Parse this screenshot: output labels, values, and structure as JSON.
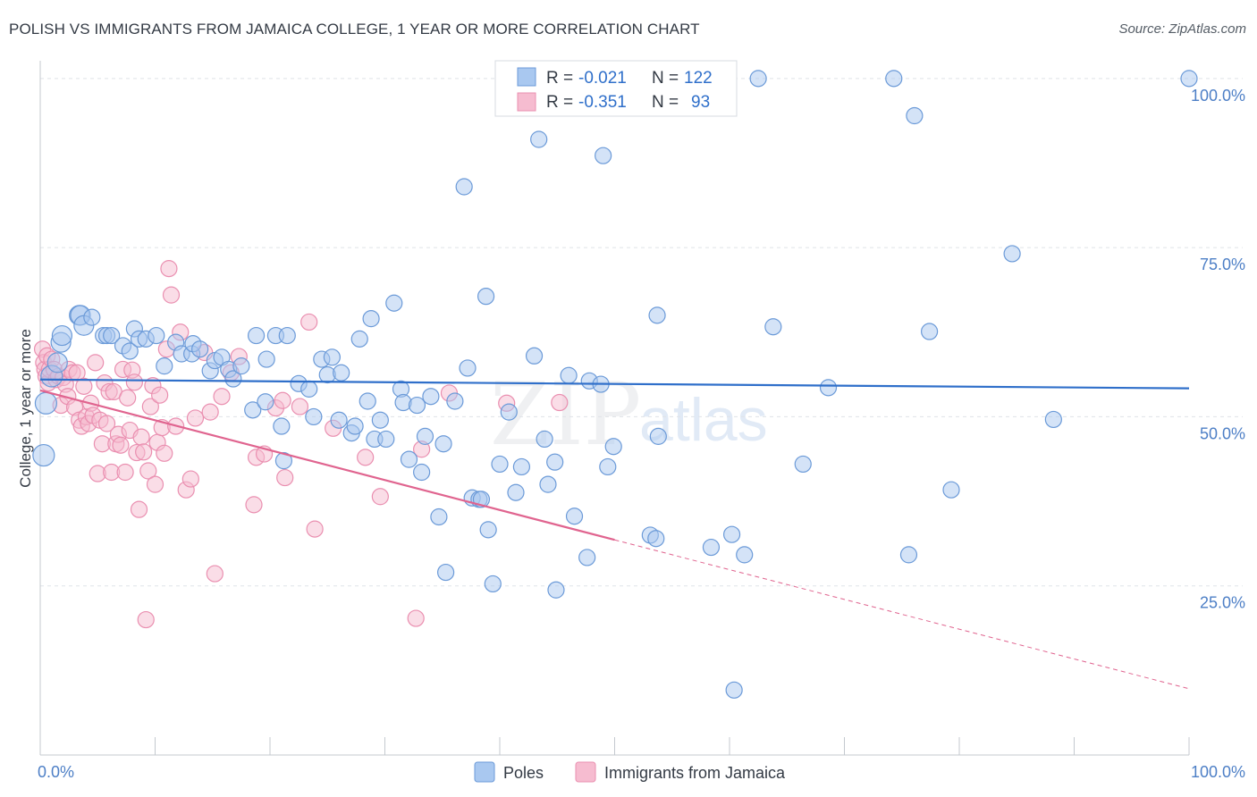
{
  "title": "POLISH VS IMMIGRANTS FROM JAMAICA COLLEGE, 1 YEAR OR MORE CORRELATION CHART",
  "source": "Source: ZipAtlas.com",
  "watermark": {
    "zip": "ZIP",
    "atlas": "atlas"
  },
  "colors": {
    "blue_fill": "#a9c8f0",
    "blue_stroke": "#6b9ad8",
    "blue_line": "#2f6fca",
    "pink_fill": "#f6bcd0",
    "pink_stroke": "#ea8fb0",
    "pink_line": "#e0648f",
    "tick_text": "#4d7fc6",
    "grid": "#dfe3e8"
  },
  "legend_top": [
    {
      "r_label": "R =",
      "r_value": "-0.021",
      "n_label": "N =",
      "n_value": "122"
    },
    {
      "r_label": "R =",
      "r_value": "-0.351",
      "n_label": "N =",
      "n_value": "93"
    }
  ],
  "legend_bottom": [
    "Poles",
    "Immigrants from Jamaica"
  ],
  "chart_data": {
    "type": "scatter",
    "title": "POLISH VS IMMIGRANTS FROM JAMAICA COLLEGE, 1 YEAR OR MORE CORRELATION CHART",
    "xlabel": "",
    "ylabel": "College, 1 year or more",
    "xlim": [
      0,
      100
    ],
    "ylim": [
      0,
      105
    ],
    "x_tick_labels": [
      "0.0%",
      "100.0%"
    ],
    "y_tick_labels": [
      "25.0%",
      "50.0%",
      "75.0%",
      "100.0%"
    ],
    "y_ticks": [
      25,
      50,
      75,
      100
    ],
    "grid": true,
    "legend_position": "top-center",
    "series": [
      {
        "name": "Poles",
        "r": -0.021,
        "n": 122,
        "trend": {
          "x": [
            0,
            100
          ],
          "y": [
            55.5,
            54.2
          ]
        },
        "points": [
          [
            0.3,
            44.3
          ],
          [
            0.5,
            52
          ],
          [
            1.0,
            56
          ],
          [
            1.5,
            58
          ],
          [
            1.8,
            61
          ],
          [
            1.9,
            62
          ],
          [
            3.4,
            65
          ],
          [
            3.5,
            65
          ],
          [
            3.8,
            63.5
          ],
          [
            4.5,
            64.7
          ],
          [
            5.5,
            62
          ],
          [
            5.8,
            62
          ],
          [
            6.2,
            62
          ],
          [
            7.2,
            60.5
          ],
          [
            7.8,
            59.7
          ],
          [
            8.2,
            63
          ],
          [
            8.6,
            61.5
          ],
          [
            9.2,
            61.5
          ],
          [
            10.1,
            62
          ],
          [
            10.8,
            57.5
          ],
          [
            11.8,
            61
          ],
          [
            12.3,
            59.3
          ],
          [
            13.2,
            59.3
          ],
          [
            13.3,
            60.8
          ],
          [
            13.9,
            60
          ],
          [
            14.8,
            56.8
          ],
          [
            15.2,
            58.3
          ],
          [
            15.8,
            58.8
          ],
          [
            16.4,
            57
          ],
          [
            16.8,
            55.6
          ],
          [
            17.5,
            57.5
          ],
          [
            18.5,
            51
          ],
          [
            18.8,
            62
          ],
          [
            19.6,
            52.2
          ],
          [
            19.7,
            58.5
          ],
          [
            20.5,
            62
          ],
          [
            21,
            48.6
          ],
          [
            21.2,
            43.5
          ],
          [
            21.5,
            62
          ],
          [
            22.5,
            54.9
          ],
          [
            23.4,
            54.1
          ],
          [
            23.8,
            50
          ],
          [
            24.5,
            58.5
          ],
          [
            25,
            56.2
          ],
          [
            25.4,
            58.8
          ],
          [
            26,
            49.5
          ],
          [
            26.2,
            56.5
          ],
          [
            27.1,
            47.6
          ],
          [
            27.4,
            48.6
          ],
          [
            27.8,
            61.5
          ],
          [
            28.5,
            52.3
          ],
          [
            28.8,
            64.5
          ],
          [
            29.1,
            46.7
          ],
          [
            29.6,
            49.5
          ],
          [
            30.1,
            46.7
          ],
          [
            30.8,
            66.8
          ],
          [
            31.4,
            54.1
          ],
          [
            31.6,
            52.1
          ],
          [
            32.1,
            43.7
          ],
          [
            32.8,
            51.7
          ],
          [
            33.2,
            41.8
          ],
          [
            33.5,
            47.1
          ],
          [
            34,
            53
          ],
          [
            34.7,
            35.2
          ],
          [
            35.1,
            46
          ],
          [
            35.3,
            27
          ],
          [
            36.1,
            52.3
          ],
          [
            36.9,
            84
          ],
          [
            37.2,
            57.2
          ],
          [
            37.6,
            38
          ],
          [
            38.2,
            37.8
          ],
          [
            38.4,
            37.8
          ],
          [
            38.8,
            67.8
          ],
          [
            39,
            33.3
          ],
          [
            39.4,
            25.3
          ],
          [
            40,
            43
          ],
          [
            40.8,
            50.7
          ],
          [
            41.4,
            38.8
          ],
          [
            41.9,
            42.6
          ],
          [
            43,
            59
          ],
          [
            43.4,
            91
          ],
          [
            43.9,
            46.7
          ],
          [
            44.2,
            40
          ],
          [
            44.8,
            43.3
          ],
          [
            44.9,
            24.4
          ],
          [
            46,
            56.1
          ],
          [
            46.5,
            35.3
          ],
          [
            47.6,
            29.2
          ],
          [
            47.8,
            55.3
          ],
          [
            48.8,
            54.8
          ],
          [
            49,
            88.6
          ],
          [
            49.4,
            42.6
          ],
          [
            49.9,
            45.6
          ],
          [
            53.1,
            32.5
          ],
          [
            53.6,
            32
          ],
          [
            53.7,
            65
          ],
          [
            53.8,
            47.1
          ],
          [
            55,
            100
          ],
          [
            57.1,
            100
          ],
          [
            58.4,
            30.7
          ],
          [
            60.2,
            32.6
          ],
          [
            60.4,
            9.6
          ],
          [
            61.3,
            29.6
          ],
          [
            62.5,
            100
          ],
          [
            63.8,
            63.3
          ],
          [
            66.4,
            43
          ],
          [
            68.6,
            54.3
          ],
          [
            74.3,
            100
          ],
          [
            75.6,
            29.6
          ],
          [
            76.1,
            94.5
          ],
          [
            77.4,
            62.6
          ],
          [
            79.3,
            39.2
          ],
          [
            84.6,
            74.1
          ],
          [
            88.2,
            49.6
          ],
          [
            100,
            100
          ]
        ]
      },
      {
        "name": "Immigrants from Jamaica",
        "r": -0.351,
        "n": 93,
        "trend": {
          "x": [
            0,
            50
          ],
          "y": [
            53.9,
            31.8
          ]
        },
        "trend_dashed": {
          "x": [
            50,
            100
          ],
          "y": [
            31.8,
            9.8
          ]
        },
        "points": [
          [
            0.2,
            60
          ],
          [
            0.3,
            58
          ],
          [
            0.4,
            57
          ],
          [
            0.5,
            56
          ],
          [
            0.6,
            59
          ],
          [
            0.7,
            55
          ],
          [
            0.8,
            57
          ],
          [
            1.0,
            58.5
          ],
          [
            1.2,
            57
          ],
          [
            1.4,
            55.5
          ],
          [
            1.6,
            56
          ],
          [
            1.8,
            51.7
          ],
          [
            2.0,
            55.8
          ],
          [
            2.2,
            54.8
          ],
          [
            2.4,
            53
          ],
          [
            2.5,
            57
          ],
          [
            2.8,
            56.5
          ],
          [
            3.0,
            51.4
          ],
          [
            3.2,
            56.5
          ],
          [
            3.4,
            49.5
          ],
          [
            3.6,
            48.6
          ],
          [
            3.8,
            54.5
          ],
          [
            4.0,
            50
          ],
          [
            4.2,
            49
          ],
          [
            4.4,
            52
          ],
          [
            4.6,
            50.2
          ],
          [
            4.8,
            58
          ],
          [
            5.0,
            41.6
          ],
          [
            5.2,
            49.5
          ],
          [
            5.4,
            46
          ],
          [
            5.6,
            55
          ],
          [
            5.8,
            49
          ],
          [
            6.0,
            53.7
          ],
          [
            6.2,
            41.8
          ],
          [
            6.4,
            53.7
          ],
          [
            6.6,
            46
          ],
          [
            6.8,
            47.4
          ],
          [
            7.0,
            45.8
          ],
          [
            7.2,
            57
          ],
          [
            7.4,
            41.8
          ],
          [
            7.6,
            52.8
          ],
          [
            7.8,
            48
          ],
          [
            8.0,
            56.9
          ],
          [
            8.2,
            55.1
          ],
          [
            8.4,
            44.7
          ],
          [
            8.6,
            36.3
          ],
          [
            8.8,
            47
          ],
          [
            9.0,
            44.8
          ],
          [
            9.2,
            20
          ],
          [
            9.4,
            42
          ],
          [
            9.6,
            51.5
          ],
          [
            9.8,
            54.6
          ],
          [
            10.0,
            40
          ],
          [
            10.2,
            46.2
          ],
          [
            10.4,
            53.2
          ],
          [
            10.6,
            48.4
          ],
          [
            10.8,
            44.6
          ],
          [
            11.0,
            60
          ],
          [
            11.2,
            71.9
          ],
          [
            11.4,
            68
          ],
          [
            11.8,
            48.6
          ],
          [
            12.2,
            62.5
          ],
          [
            12.7,
            39.2
          ],
          [
            13.1,
            40.8
          ],
          [
            13.5,
            49.8
          ],
          [
            14.3,
            59.5
          ],
          [
            14.8,
            50.7
          ],
          [
            15.2,
            26.8
          ],
          [
            15.8,
            53
          ],
          [
            16.6,
            56.5
          ],
          [
            17.3,
            58.9
          ],
          [
            18.6,
            37
          ],
          [
            18.8,
            44
          ],
          [
            19.5,
            44.5
          ],
          [
            20.5,
            51.3
          ],
          [
            21.1,
            52.4
          ],
          [
            21.3,
            41
          ],
          [
            22.6,
            51.5
          ],
          [
            23.4,
            64
          ],
          [
            23.9,
            33.4
          ],
          [
            25.5,
            48.3
          ],
          [
            28.3,
            44
          ],
          [
            29.6,
            38.2
          ],
          [
            32.7,
            20.2
          ],
          [
            33.2,
            45.2
          ],
          [
            35.6,
            53.5
          ],
          [
            40.6,
            52
          ],
          [
            45.2,
            52.1
          ]
        ]
      }
    ]
  }
}
